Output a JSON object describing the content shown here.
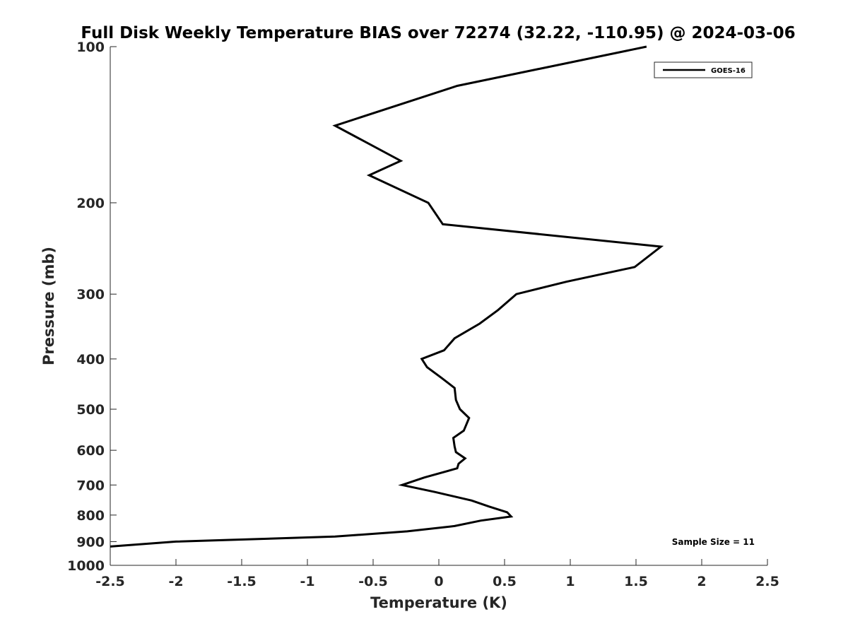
{
  "chart_data": {
    "type": "line",
    "title": "Full Disk Weekly Temperature BIAS over 72274 (32.22, -110.95) @ 2024-03-06",
    "xlabel": "Temperature (K)",
    "ylabel": "Pressure (mb)",
    "xlim": [
      -2.5,
      2.5
    ],
    "ylim": [
      100,
      1000
    ],
    "yscale": "log",
    "y_reversed": true,
    "grid": false,
    "legend_position": "top-right",
    "xticks": [
      -2.5,
      -2,
      -1.5,
      -1,
      -0.5,
      0,
      0.5,
      1,
      1.5,
      2,
      2.5
    ],
    "xtick_labels": [
      "-2.5",
      "-2",
      "-1.5",
      "-1",
      "-0.5",
      "0",
      "0.5",
      "1",
      "1.5",
      "2",
      "2.5"
    ],
    "yticks": [
      100,
      200,
      300,
      400,
      500,
      600,
      700,
      800,
      900,
      1000
    ],
    "ytick_labels": [
      "100",
      "200",
      "300",
      "400",
      "500",
      "600",
      "700",
      "800",
      "900",
      "1000"
    ],
    "series": [
      {
        "name": "GOES-16",
        "color": "#000000",
        "x": [
          1.58,
          0.14,
          -0.79,
          -0.29,
          -0.53,
          -0.08,
          0.03,
          1.69,
          1.49,
          0.97,
          0.59,
          0.45,
          0.31,
          0.12,
          0.04,
          -0.13,
          -0.09,
          0.02,
          0.12,
          0.13,
          0.16,
          0.23,
          0.19,
          0.11,
          0.12,
          0.13,
          0.2,
          0.15,
          0.14,
          -0.11,
          -0.28,
          -0.03,
          0.25,
          0.38,
          0.52,
          0.55,
          0.32,
          0.12,
          -0.24,
          -0.79,
          -2.0,
          -2.5
        ],
        "y": [
          100,
          119,
          142,
          166,
          177,
          200,
          220,
          243,
          266,
          284,
          300,
          322,
          342,
          365,
          385,
          400,
          415,
          435,
          455,
          480,
          500,
          520,
          550,
          568,
          590,
          605,
          622,
          637,
          650,
          677,
          700,
          722,
          750,
          770,
          790,
          805,
          820,
          840,
          860,
          880,
          900,
          920
        ]
      }
    ],
    "annotations": [
      "Sample Size = 11"
    ]
  }
}
